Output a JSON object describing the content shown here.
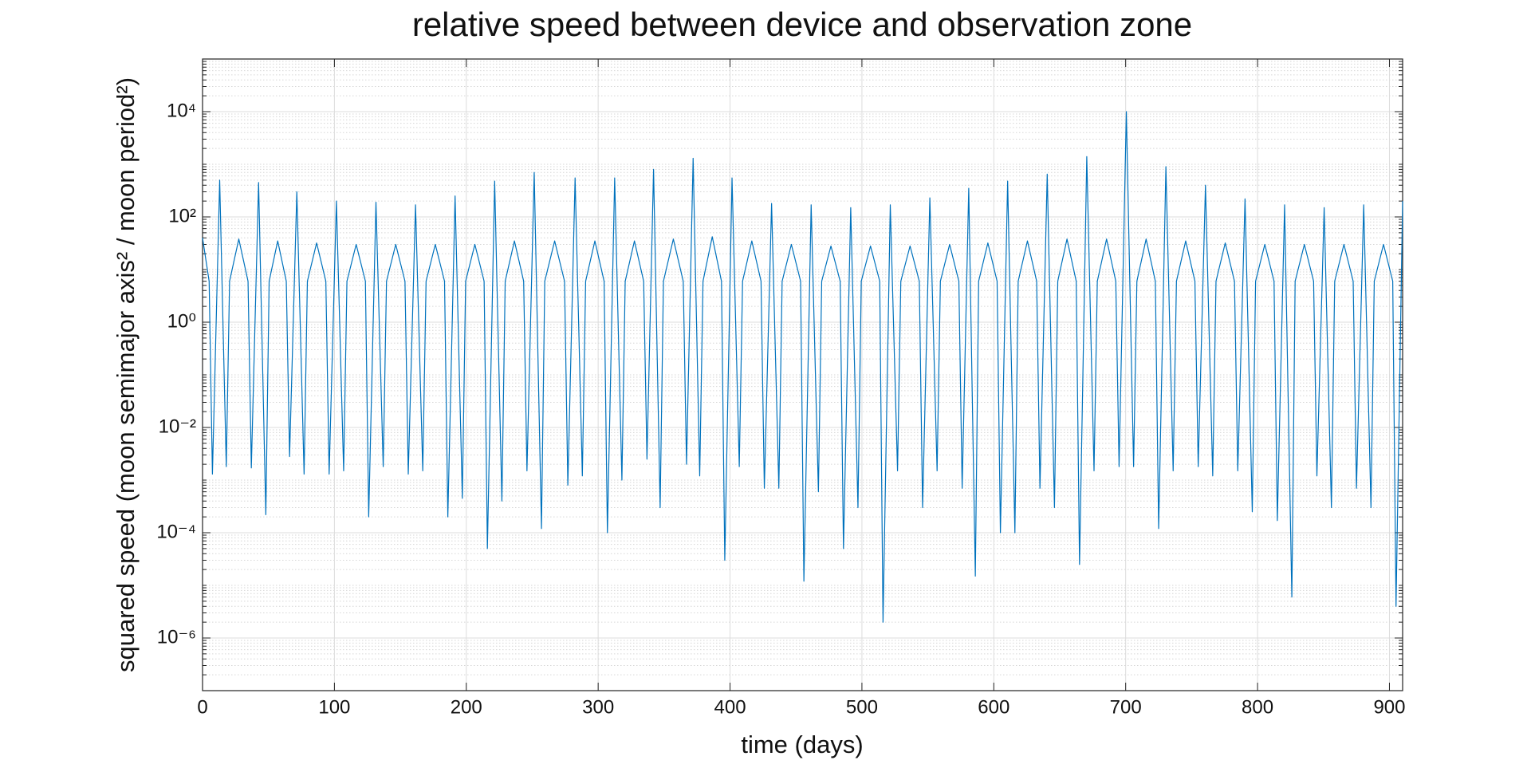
{
  "chart_data": {
    "type": "line",
    "title": "relative speed between device and observation zone",
    "x_label": "time (days)",
    "y_label": "squared speed (moon semimajor axis² / moon period²)",
    "log_y": true,
    "grid": true,
    "minor_grid": true,
    "xlim": [
      0,
      910
    ],
    "xticks": [
      0,
      100,
      200,
      300,
      400,
      500,
      600,
      700,
      800,
      900
    ],
    "ylim": [
      1e-07,
      100000
    ],
    "yticks": [
      {
        "value": 1e-06,
        "label": "10⁻⁶"
      },
      {
        "value": 0.0001,
        "label": "10⁻⁴"
      },
      {
        "value": 0.01,
        "label": "10⁻²"
      },
      {
        "value": 1,
        "label": "10⁰"
      },
      {
        "value": 100,
        "label": "10²"
      },
      {
        "value": 10000,
        "label": "10⁴"
      }
    ],
    "x": [
      0,
      5,
      7.5,
      13,
      18,
      20.5,
      27.5,
      34.5,
      37,
      42.5,
      48,
      50.5,
      57,
      63.5,
      66,
      71.5,
      77,
      79.5,
      86.5,
      93.5,
      96,
      101.5,
      107,
      109.5,
      116.5,
      123.5,
      126,
      131.5,
      137,
      139.5,
      146.5,
      153.5,
      156,
      161.5,
      167,
      169.5,
      176.5,
      183.5,
      186,
      191.5,
      197,
      199.5,
      206.5,
      213.5,
      216,
      221.5,
      227,
      229.5,
      236.5,
      243.5,
      246,
      251.5,
      257,
      259.5,
      267,
      274.5,
      277,
      282.5,
      288,
      290.5,
      297.5,
      304.5,
      307,
      312.5,
      318,
      320.5,
      327.5,
      334.5,
      337,
      342,
      347,
      349.5,
      357,
      364.5,
      367,
      372,
      377,
      379.5,
      386.5,
      393.5,
      396,
      401.5,
      407,
      409.5,
      416.5,
      423.5,
      426,
      431.5,
      437,
      439.5,
      446.5,
      453.5,
      456,
      461.5,
      467,
      469.5,
      476.5,
      483.5,
      486,
      491.5,
      497,
      499.5,
      506.5,
      513.5,
      516,
      521.5,
      527,
      529.5,
      536.5,
      543.5,
      546,
      551.5,
      557,
      559.5,
      566.5,
      573.5,
      576,
      581,
      586,
      588.5,
      595.5,
      602.5,
      605,
      610.5,
      616,
      618.5,
      625.5,
      632.5,
      635,
      640.5,
      646,
      648.5,
      655.5,
      662.5,
      665,
      670.5,
      676,
      678.5,
      685.5,
      692.5,
      695,
      700.5,
      706,
      708.5,
      715.5,
      722.5,
      725,
      730.5,
      736,
      738.5,
      745.5,
      752.5,
      755,
      760.5,
      766,
      768.5,
      775.5,
      782.5,
      785,
      790.5,
      796,
      798.5,
      805.5,
      812.5,
      815,
      820.5,
      826,
      828.5,
      835.5,
      842.5,
      845,
      850.5,
      856,
      858.5,
      865.5,
      872.5,
      875,
      880.5,
      886,
      888.5,
      895.5,
      902.5,
      905,
      910
    ],
    "series": [
      {
        "color": "#0072bd",
        "values": [
          40,
          6,
          0.0013,
          500,
          0.0018,
          6,
          38,
          6,
          0.0017,
          450,
          0.00022,
          6,
          35,
          6,
          0.0028,
          300,
          0.0013,
          6,
          32,
          6,
          0.0013,
          200,
          0.0015,
          6,
          30,
          6,
          0.0002,
          190,
          0.0018,
          6,
          30,
          6,
          0.0013,
          170,
          0.0015,
          6,
          30,
          6,
          0.0002,
          250,
          0.00045,
          6,
          30,
          6,
          5e-05,
          480,
          0.0004,
          6,
          35,
          6,
          0.0015,
          700,
          0.00012,
          6,
          35,
          6,
          0.0008,
          550,
          0.0012,
          6,
          35,
          6,
          0.0001,
          550,
          0.001,
          6,
          35,
          6,
          0.0025,
          800,
          0.0003,
          6,
          38,
          6,
          0.002,
          1300,
          0.0012,
          6,
          42,
          6,
          3e-05,
          550,
          0.0018,
          6,
          35,
          6,
          0.0007,
          180,
          0.0007,
          6,
          30,
          6,
          1.2e-05,
          170,
          0.0006,
          6,
          28,
          6,
          5e-05,
          150,
          0.0003,
          6,
          28,
          6,
          2e-06,
          170,
          0.0015,
          6,
          28,
          6,
          0.0003,
          230,
          0.0015,
          6,
          30,
          6,
          0.0007,
          350,
          1.5e-05,
          6,
          32,
          6,
          0.0001,
          480,
          0.0001,
          6,
          35,
          6,
          0.0007,
          650,
          0.0003,
          6,
          38,
          6,
          2.5e-05,
          1400,
          0.0015,
          6,
          38,
          6,
          0.0018,
          10000,
          0.0018,
          6,
          38,
          6,
          0.00012,
          900,
          0.0015,
          6,
          35,
          6,
          0.0018,
          400,
          0.0012,
          6,
          32,
          6,
          0.0015,
          220,
          0.00025,
          6,
          30,
          6,
          0.00017,
          170,
          6e-06,
          6,
          30,
          6,
          0.0012,
          150,
          0.0003,
          6,
          30,
          6,
          0.0007,
          170,
          0.0003,
          6,
          30,
          6,
          4e-06,
          200
        ]
      }
    ]
  }
}
